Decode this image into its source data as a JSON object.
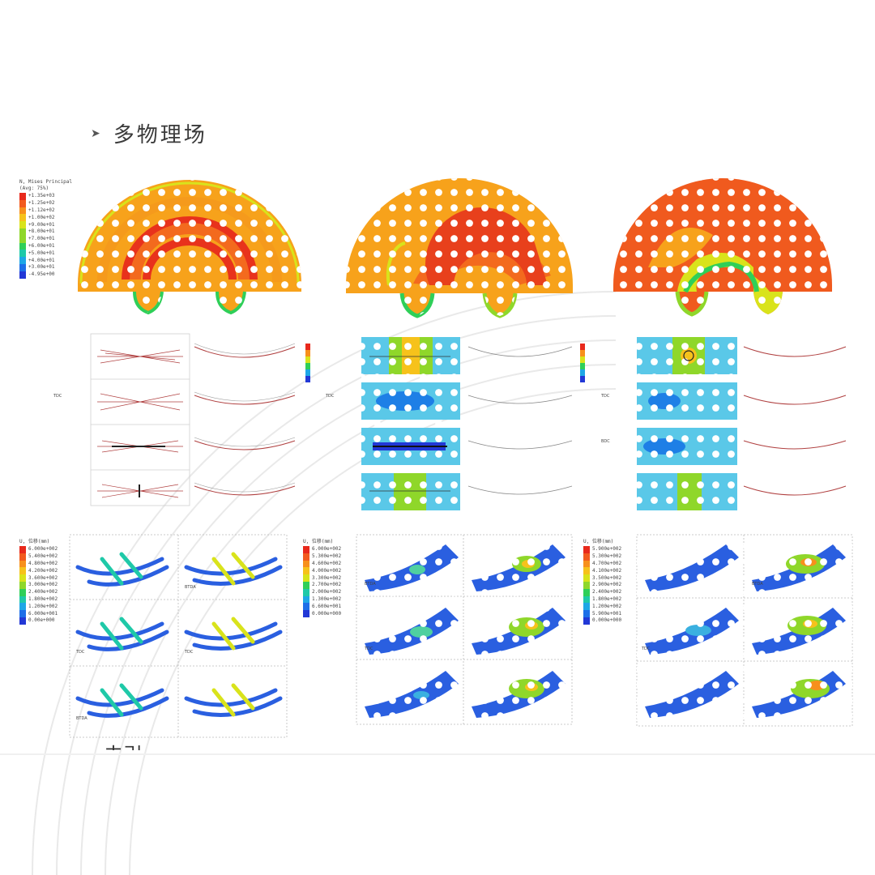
{
  "heading": {
    "bullet": "➤",
    "text": "多物理场"
  },
  "partial_heading": "去引",
  "colors": {
    "contour": [
      "#e8291c",
      "#f25a1e",
      "#f7901c",
      "#f6c21b",
      "#d9e31b",
      "#8fd72a",
      "#2fcf58",
      "#1fc9a8",
      "#1ea7e6",
      "#1d6fe8",
      "#2238d6"
    ],
    "background_arcs": "#e6e6e6",
    "dot_overlay": "#ffffff"
  },
  "top_legend": {
    "title_lines": [
      "N, Mises Principal",
      "(Avg: 75%)"
    ],
    "values": [
      "+1.35e+03",
      "+1.25e+02",
      "+1.12e+02",
      "+1.00e+02",
      "+9.00e+01",
      "+8.00e+01",
      "+7.00e+01",
      "+6.00e+01",
      "+5.00e+01",
      "+4.00e+01",
      "+3.00e+01",
      "-4.95e+00"
    ]
  },
  "bottom_legends": [
    {
      "title": "U, 位移(mm)",
      "values": [
        "6.000e+002",
        "5.400e+002",
        "4.800e+002",
        "4.200e+002",
        "3.600e+002",
        "3.000e+002",
        "2.400e+002",
        "1.800e+002",
        "1.200e+002",
        "6.000e+001",
        "0.00e+000"
      ]
    },
    {
      "title": "U, 位移(mm)",
      "values": [
        "6.000e+002",
        "5.300e+002",
        "4.600e+002",
        "4.000e+002",
        "3.300e+002",
        "2.700e+002",
        "2.000e+002",
        "1.300e+002",
        "6.600e+001",
        "0.000e+000"
      ]
    },
    {
      "title": "U, 位移(mm)",
      "values": [
        "5.900e+002",
        "5.300e+002",
        "4.700e+002",
        "4.100e+002",
        "3.500e+002",
        "2.900e+002",
        "2.400e+002",
        "1.800e+002",
        "1.200e+002",
        "5.900e+001",
        "0.000e+000"
      ]
    }
  ],
  "panel_labels": {
    "row_labels": [
      "TDC",
      "TDC",
      "BDC",
      "TDC"
    ],
    "bottom_corner_labels": [
      "BTDA",
      "TDC",
      "TDC",
      "BTDA",
      "TDC",
      "TDC",
      "BTDA",
      "BTDA"
    ]
  }
}
